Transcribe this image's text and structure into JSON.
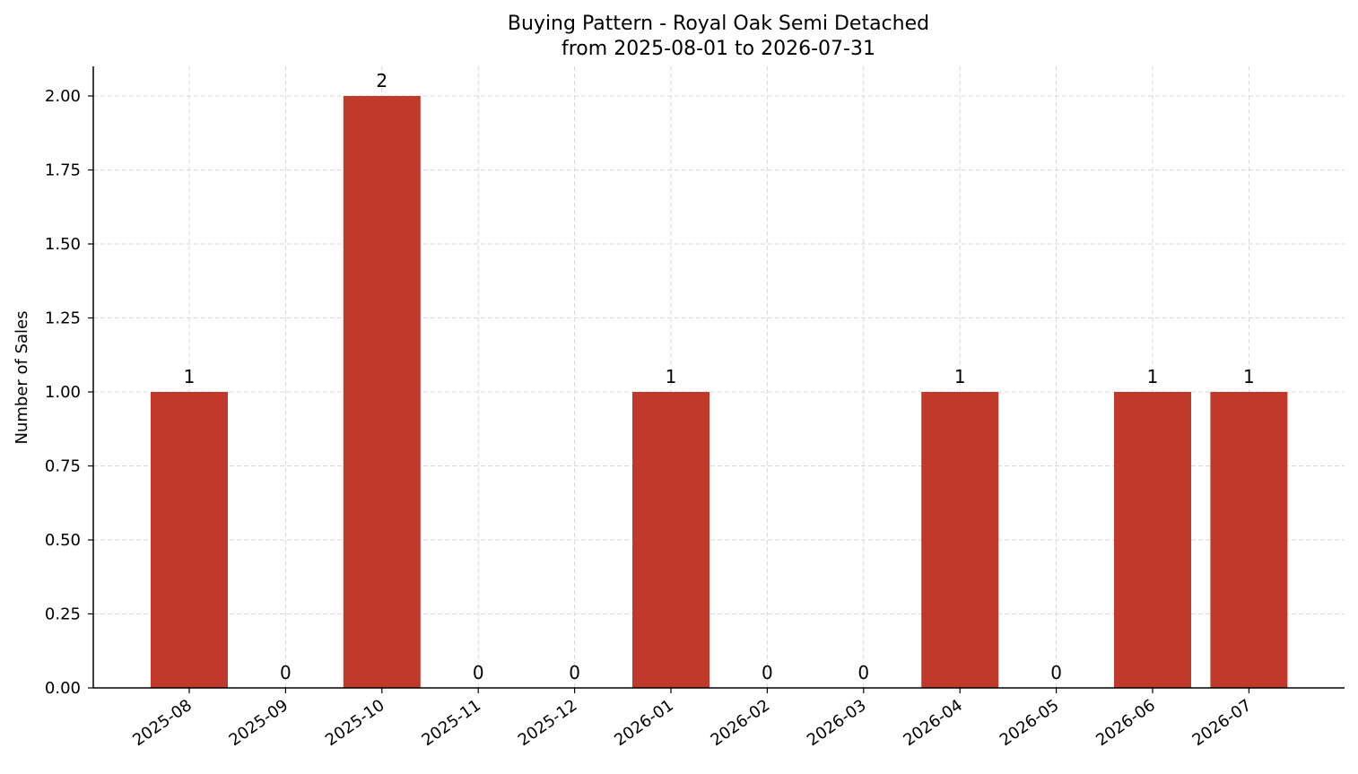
{
  "chart_data": {
    "type": "bar",
    "title_lines": [
      "Buying Pattern - Royal Oak Semi Detached",
      "from 2025-08-01 to 2026-07-31"
    ],
    "xlabel": "",
    "ylabel": "Number of Sales",
    "categories": [
      "2025-08",
      "2025-09",
      "2025-10",
      "2025-11",
      "2025-12",
      "2026-01",
      "2026-02",
      "2026-03",
      "2026-04",
      "2026-05",
      "2026-06",
      "2026-07"
    ],
    "values": [
      1,
      0,
      2,
      0,
      0,
      1,
      0,
      0,
      1,
      0,
      1,
      1
    ],
    "data_labels": [
      "1",
      "0",
      "2",
      "0",
      "0",
      "1",
      "0",
      "0",
      "1",
      "0",
      "1",
      "1"
    ],
    "ylim": [
      0,
      2.1
    ],
    "yticks": [
      0,
      0.25,
      0.5,
      0.75,
      1.0,
      1.25,
      1.5,
      1.75,
      2.0
    ],
    "ytick_labels": [
      "0.00",
      "0.25",
      "0.50",
      "0.75",
      "1.00",
      "1.25",
      "1.50",
      "1.75",
      "2.00"
    ],
    "grid": true,
    "bar_color": "#c0392b"
  }
}
